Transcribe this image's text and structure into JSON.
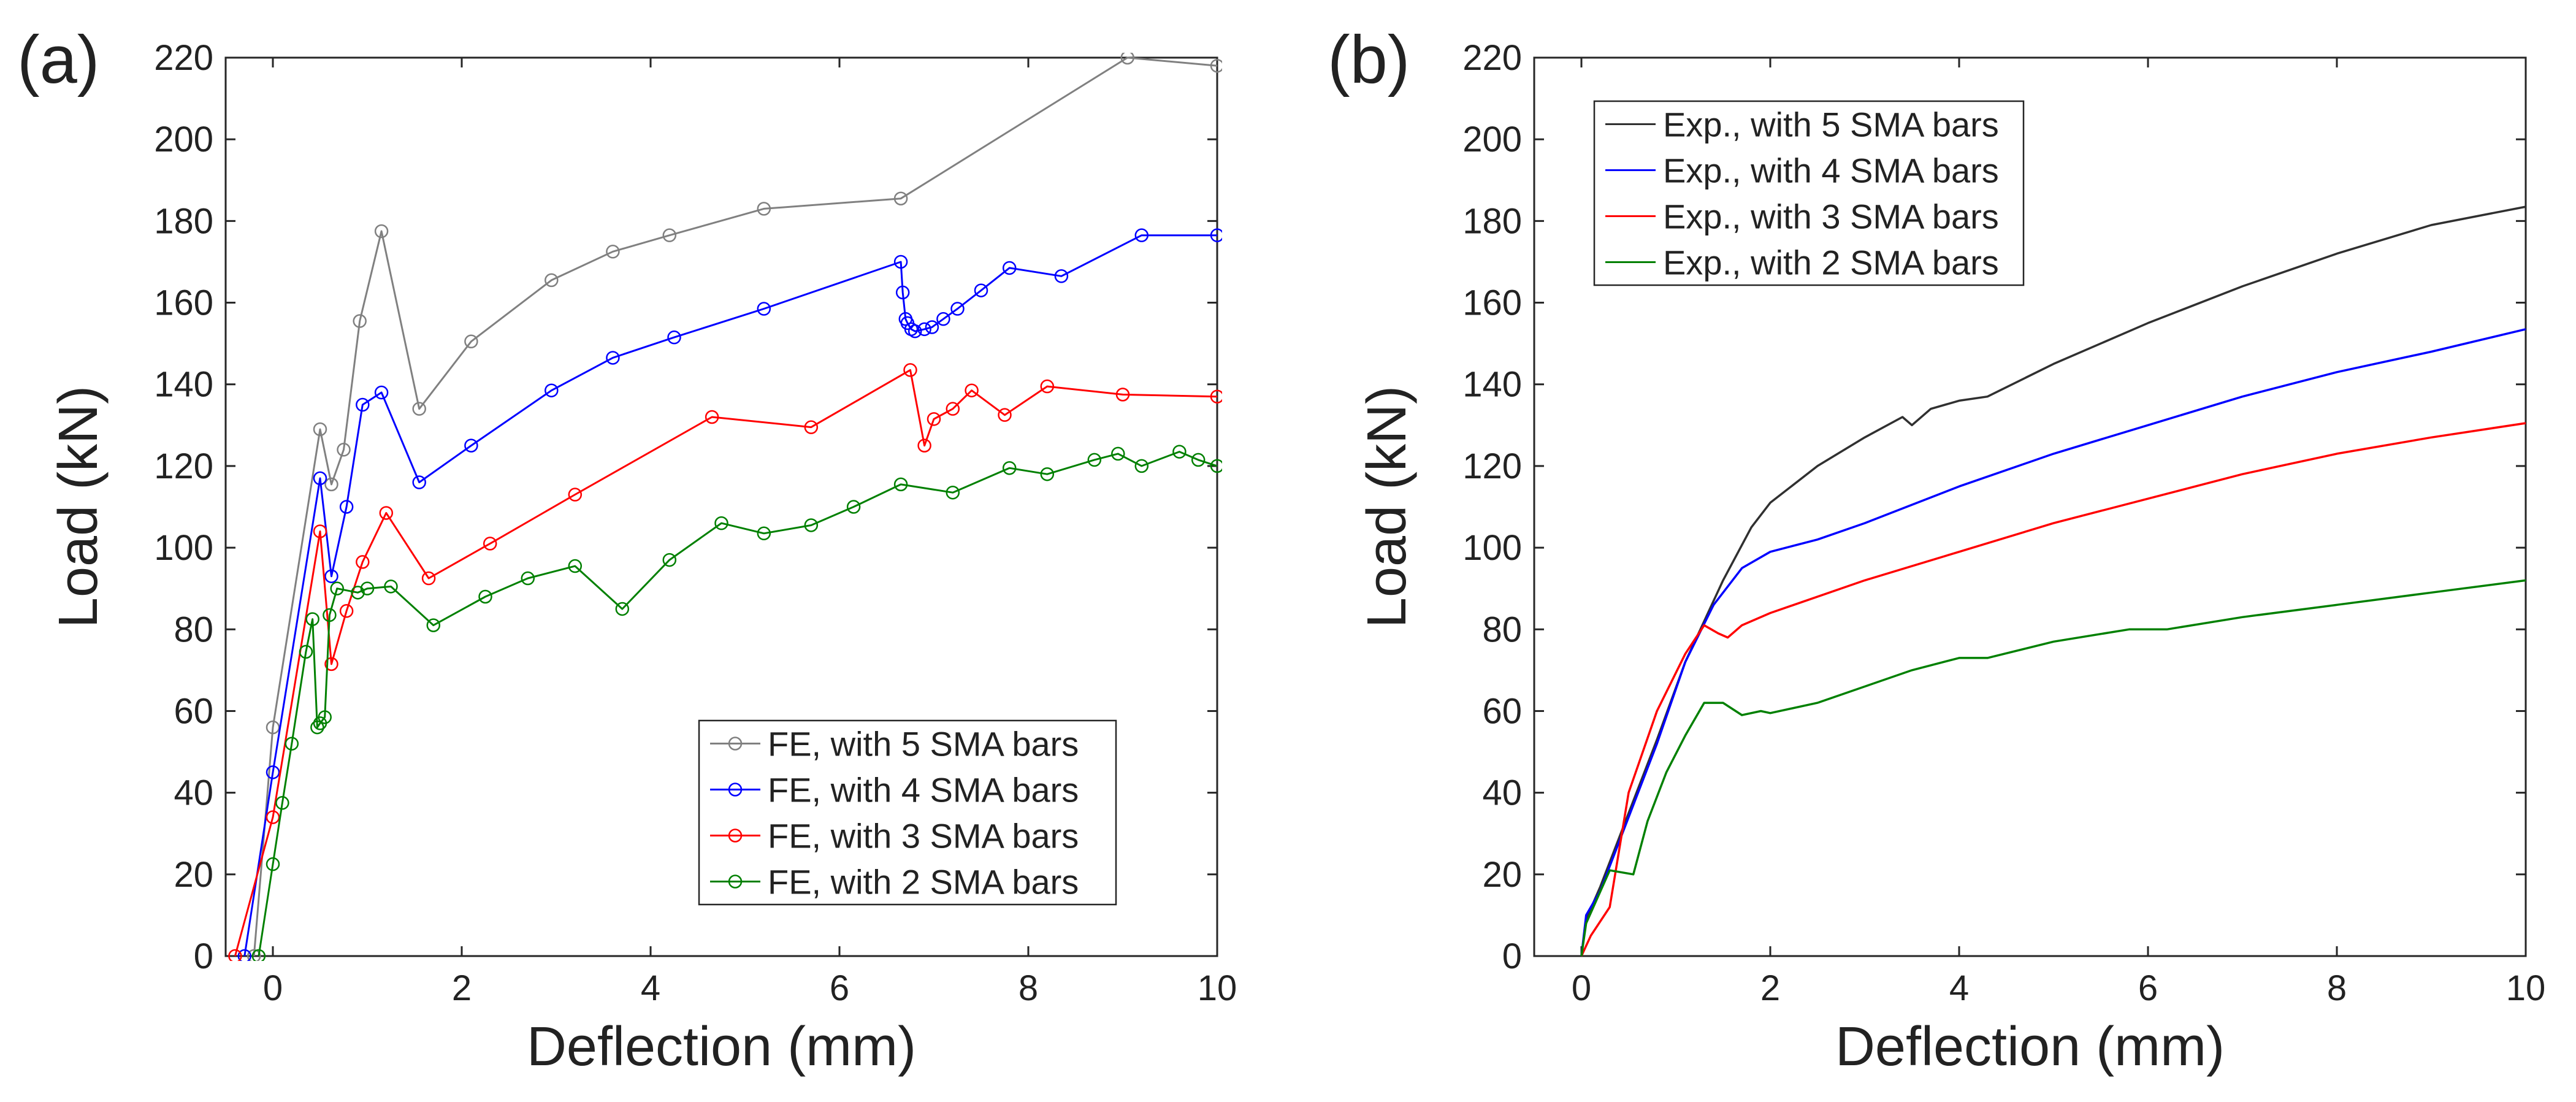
{
  "figure": {
    "panels": [
      {
        "label": "(a)"
      },
      {
        "label": "(b)"
      }
    ]
  },
  "chart_data": [
    {
      "type": "line",
      "panel": "(a)",
      "xlabel": "Deflection (mm)",
      "ylabel": "Load (kN)",
      "xlim": [
        -0.5,
        10
      ],
      "ylim": [
        0,
        220
      ],
      "xticks": [
        0,
        2,
        4,
        6,
        8,
        10
      ],
      "yticks": [
        0,
        20,
        40,
        60,
        80,
        100,
        120,
        140,
        160,
        180,
        200,
        220
      ],
      "grid": false,
      "markers": "circle",
      "legend_position": "bottom-right",
      "series": [
        {
          "name": "FE, with 5 SMA bars",
          "color": "#808080",
          "points": [
            [
              -0.2,
              0
            ],
            [
              0,
              56
            ],
            [
              0.5,
              129
            ],
            [
              0.62,
              115.5
            ],
            [
              0.75,
              124
            ],
            [
              0.92,
              155.5
            ],
            [
              1.15,
              177.5
            ],
            [
              1.55,
              134
            ],
            [
              2.1,
              150.5
            ],
            [
              2.95,
              165.5
            ],
            [
              3.6,
              172.5
            ],
            [
              4.2,
              176.5
            ],
            [
              5.2,
              183
            ],
            [
              6.65,
              185.5
            ],
            [
              9.05,
              220
            ],
            [
              10,
              218
            ]
          ]
        },
        {
          "name": "FE, with 4 SMA bars",
          "color": "#0000ff",
          "points": [
            [
              -0.3,
              0
            ],
            [
              0,
              45
            ],
            [
              0.5,
              117
            ],
            [
              0.62,
              93
            ],
            [
              0.78,
              110
            ],
            [
              0.95,
              135
            ],
            [
              1.15,
              138
            ],
            [
              1.55,
              116
            ],
            [
              2.1,
              125
            ],
            [
              2.95,
              138.5
            ],
            [
              3.6,
              146.5
            ],
            [
              4.25,
              151.5
            ],
            [
              5.2,
              158.5
            ],
            [
              6.65,
              170
            ],
            [
              6.67,
              162.5
            ],
            [
              6.7,
              156
            ],
            [
              6.72,
              155
            ],
            [
              6.76,
              153.5
            ],
            [
              6.8,
              153
            ],
            [
              6.9,
              153.5
            ],
            [
              6.98,
              154
            ],
            [
              7.1,
              156
            ],
            [
              7.25,
              158.5
            ],
            [
              7.5,
              163
            ],
            [
              7.8,
              168.5
            ],
            [
              8.35,
              166.5
            ],
            [
              9.2,
              176.5
            ],
            [
              10,
              176.5
            ]
          ]
        },
        {
          "name": "FE, with 3 SMA bars",
          "color": "#ff0000",
          "points": [
            [
              -0.4,
              0
            ],
            [
              0,
              34
            ],
            [
              0.5,
              104
            ],
            [
              0.62,
              71.5
            ],
            [
              0.78,
              84.5
            ],
            [
              0.95,
              96.5
            ],
            [
              1.2,
              108.5
            ],
            [
              1.65,
              92.5
            ],
            [
              2.3,
              101
            ],
            [
              3.2,
              113
            ],
            [
              4.65,
              132
            ],
            [
              5.7,
              129.5
            ],
            [
              6.75,
              143.5
            ],
            [
              6.9,
              125
            ],
            [
              7.0,
              131.5
            ],
            [
              7.2,
              134
            ],
            [
              7.4,
              138.5
            ],
            [
              7.75,
              132.5
            ],
            [
              8.2,
              139.5
            ],
            [
              9.0,
              137.5
            ],
            [
              10,
              137
            ]
          ]
        },
        {
          "name": "FE, with 2 SMA bars",
          "color": "#008000",
          "points": [
            [
              -0.15,
              0
            ],
            [
              0,
              22.5
            ],
            [
              0.1,
              37.5
            ],
            [
              0.2,
              52
            ],
            [
              0.35,
              74.5
            ],
            [
              0.42,
              82.5
            ],
            [
              0.47,
              56
            ],
            [
              0.5,
              57
            ],
            [
              0.55,
              58.5
            ],
            [
              0.6,
              83.5
            ],
            [
              0.68,
              90
            ],
            [
              0.9,
              89
            ],
            [
              1.0,
              90
            ],
            [
              1.25,
              90.5
            ],
            [
              1.7,
              81
            ],
            [
              2.25,
              88
            ],
            [
              2.7,
              92.5
            ],
            [
              3.2,
              95.5
            ],
            [
              3.7,
              85
            ],
            [
              4.2,
              97
            ],
            [
              4.75,
              106
            ],
            [
              5.2,
              103.5
            ],
            [
              5.7,
              105.5
            ],
            [
              6.15,
              110
            ],
            [
              6.65,
              115.5
            ],
            [
              7.2,
              113.5
            ],
            [
              7.8,
              119.5
            ],
            [
              8.2,
              118
            ],
            [
              8.7,
              121.5
            ],
            [
              8.95,
              123
            ],
            [
              9.2,
              120
            ],
            [
              9.6,
              123.5
            ],
            [
              9.8,
              121.5
            ],
            [
              10,
              120
            ]
          ]
        }
      ]
    },
    {
      "type": "line",
      "panel": "(b)",
      "xlabel": "Deflection (mm)",
      "ylabel": "Load (kN)",
      "xlim": [
        -0.5,
        10
      ],
      "ylim": [
        0,
        220
      ],
      "xticks": [
        0,
        2,
        4,
        6,
        8,
        10
      ],
      "yticks": [
        0,
        20,
        40,
        60,
        80,
        100,
        120,
        140,
        160,
        180,
        200,
        220
      ],
      "grid": false,
      "markers": "none",
      "legend_position": "top-left",
      "series": [
        {
          "name": "Exp., with 5 SMA bars",
          "color": "#303030",
          "points": [
            [
              0,
              0
            ],
            [
              0.05,
              9
            ],
            [
              0.2,
              17
            ],
            [
              0.5,
              35
            ],
            [
              0.8,
              53
            ],
            [
              1.1,
              72
            ],
            [
              1.3,
              82
            ],
            [
              1.5,
              92
            ],
            [
              1.8,
              105
            ],
            [
              2.0,
              111
            ],
            [
              2.5,
              120
            ],
            [
              3.0,
              127
            ],
            [
              3.4,
              132
            ],
            [
              3.5,
              130
            ],
            [
              3.7,
              134
            ],
            [
              4.0,
              136
            ],
            [
              4.3,
              137
            ],
            [
              5.0,
              145
            ],
            [
              6.0,
              155
            ],
            [
              7.0,
              164
            ],
            [
              8.0,
              172
            ],
            [
              9.0,
              179
            ],
            [
              10,
              183.5
            ]
          ]
        },
        {
          "name": "Exp., with 4 SMA bars",
          "color": "#0000ff",
          "points": [
            [
              0,
              0
            ],
            [
              0.05,
              10
            ],
            [
              0.2,
              16
            ],
            [
              0.5,
              34
            ],
            [
              0.8,
              52
            ],
            [
              1.1,
              72
            ],
            [
              1.4,
              86
            ],
            [
              1.7,
              95
            ],
            [
              2.0,
              99
            ],
            [
              2.5,
              102
            ],
            [
              3.0,
              106
            ],
            [
              4.0,
              115
            ],
            [
              5.0,
              123
            ],
            [
              6.0,
              130
            ],
            [
              7.0,
              137
            ],
            [
              8.0,
              143
            ],
            [
              9.0,
              148
            ],
            [
              10,
              153.5
            ]
          ]
        },
        {
          "name": "Exp., with 3 SMA bars",
          "color": "#ff0000",
          "points": [
            [
              0,
              0
            ],
            [
              0.1,
              5
            ],
            [
              0.3,
              12
            ],
            [
              0.5,
              40
            ],
            [
              0.8,
              60
            ],
            [
              1.1,
              74
            ],
            [
              1.3,
              81
            ],
            [
              1.45,
              79
            ],
            [
              1.55,
              78
            ],
            [
              1.7,
              81
            ],
            [
              2.0,
              84
            ],
            [
              3.0,
              92
            ],
            [
              4.0,
              99
            ],
            [
              5.0,
              106
            ],
            [
              6.0,
              112
            ],
            [
              7.0,
              118
            ],
            [
              8.0,
              123
            ],
            [
              9.0,
              127
            ],
            [
              10,
              130.5
            ]
          ]
        },
        {
          "name": "Exp., with 2 SMA bars",
          "color": "#008000",
          "points": [
            [
              0,
              0
            ],
            [
              0.05,
              8
            ],
            [
              0.3,
              21
            ],
            [
              0.55,
              20
            ],
            [
              0.7,
              33
            ],
            [
              0.9,
              45
            ],
            [
              1.1,
              54
            ],
            [
              1.3,
              62
            ],
            [
              1.5,
              62
            ],
            [
              1.7,
              59
            ],
            [
              1.9,
              60
            ],
            [
              2.0,
              59.5
            ],
            [
              2.5,
              62
            ],
            [
              3.0,
              66
            ],
            [
              3.5,
              70
            ],
            [
              4.0,
              73
            ],
            [
              4.3,
              73
            ],
            [
              5.0,
              77
            ],
            [
              5.8,
              80
            ],
            [
              6.2,
              80
            ],
            [
              7.0,
              83
            ],
            [
              8.0,
              86
            ],
            [
              9.0,
              89
            ],
            [
              10,
              92
            ]
          ]
        }
      ]
    }
  ]
}
